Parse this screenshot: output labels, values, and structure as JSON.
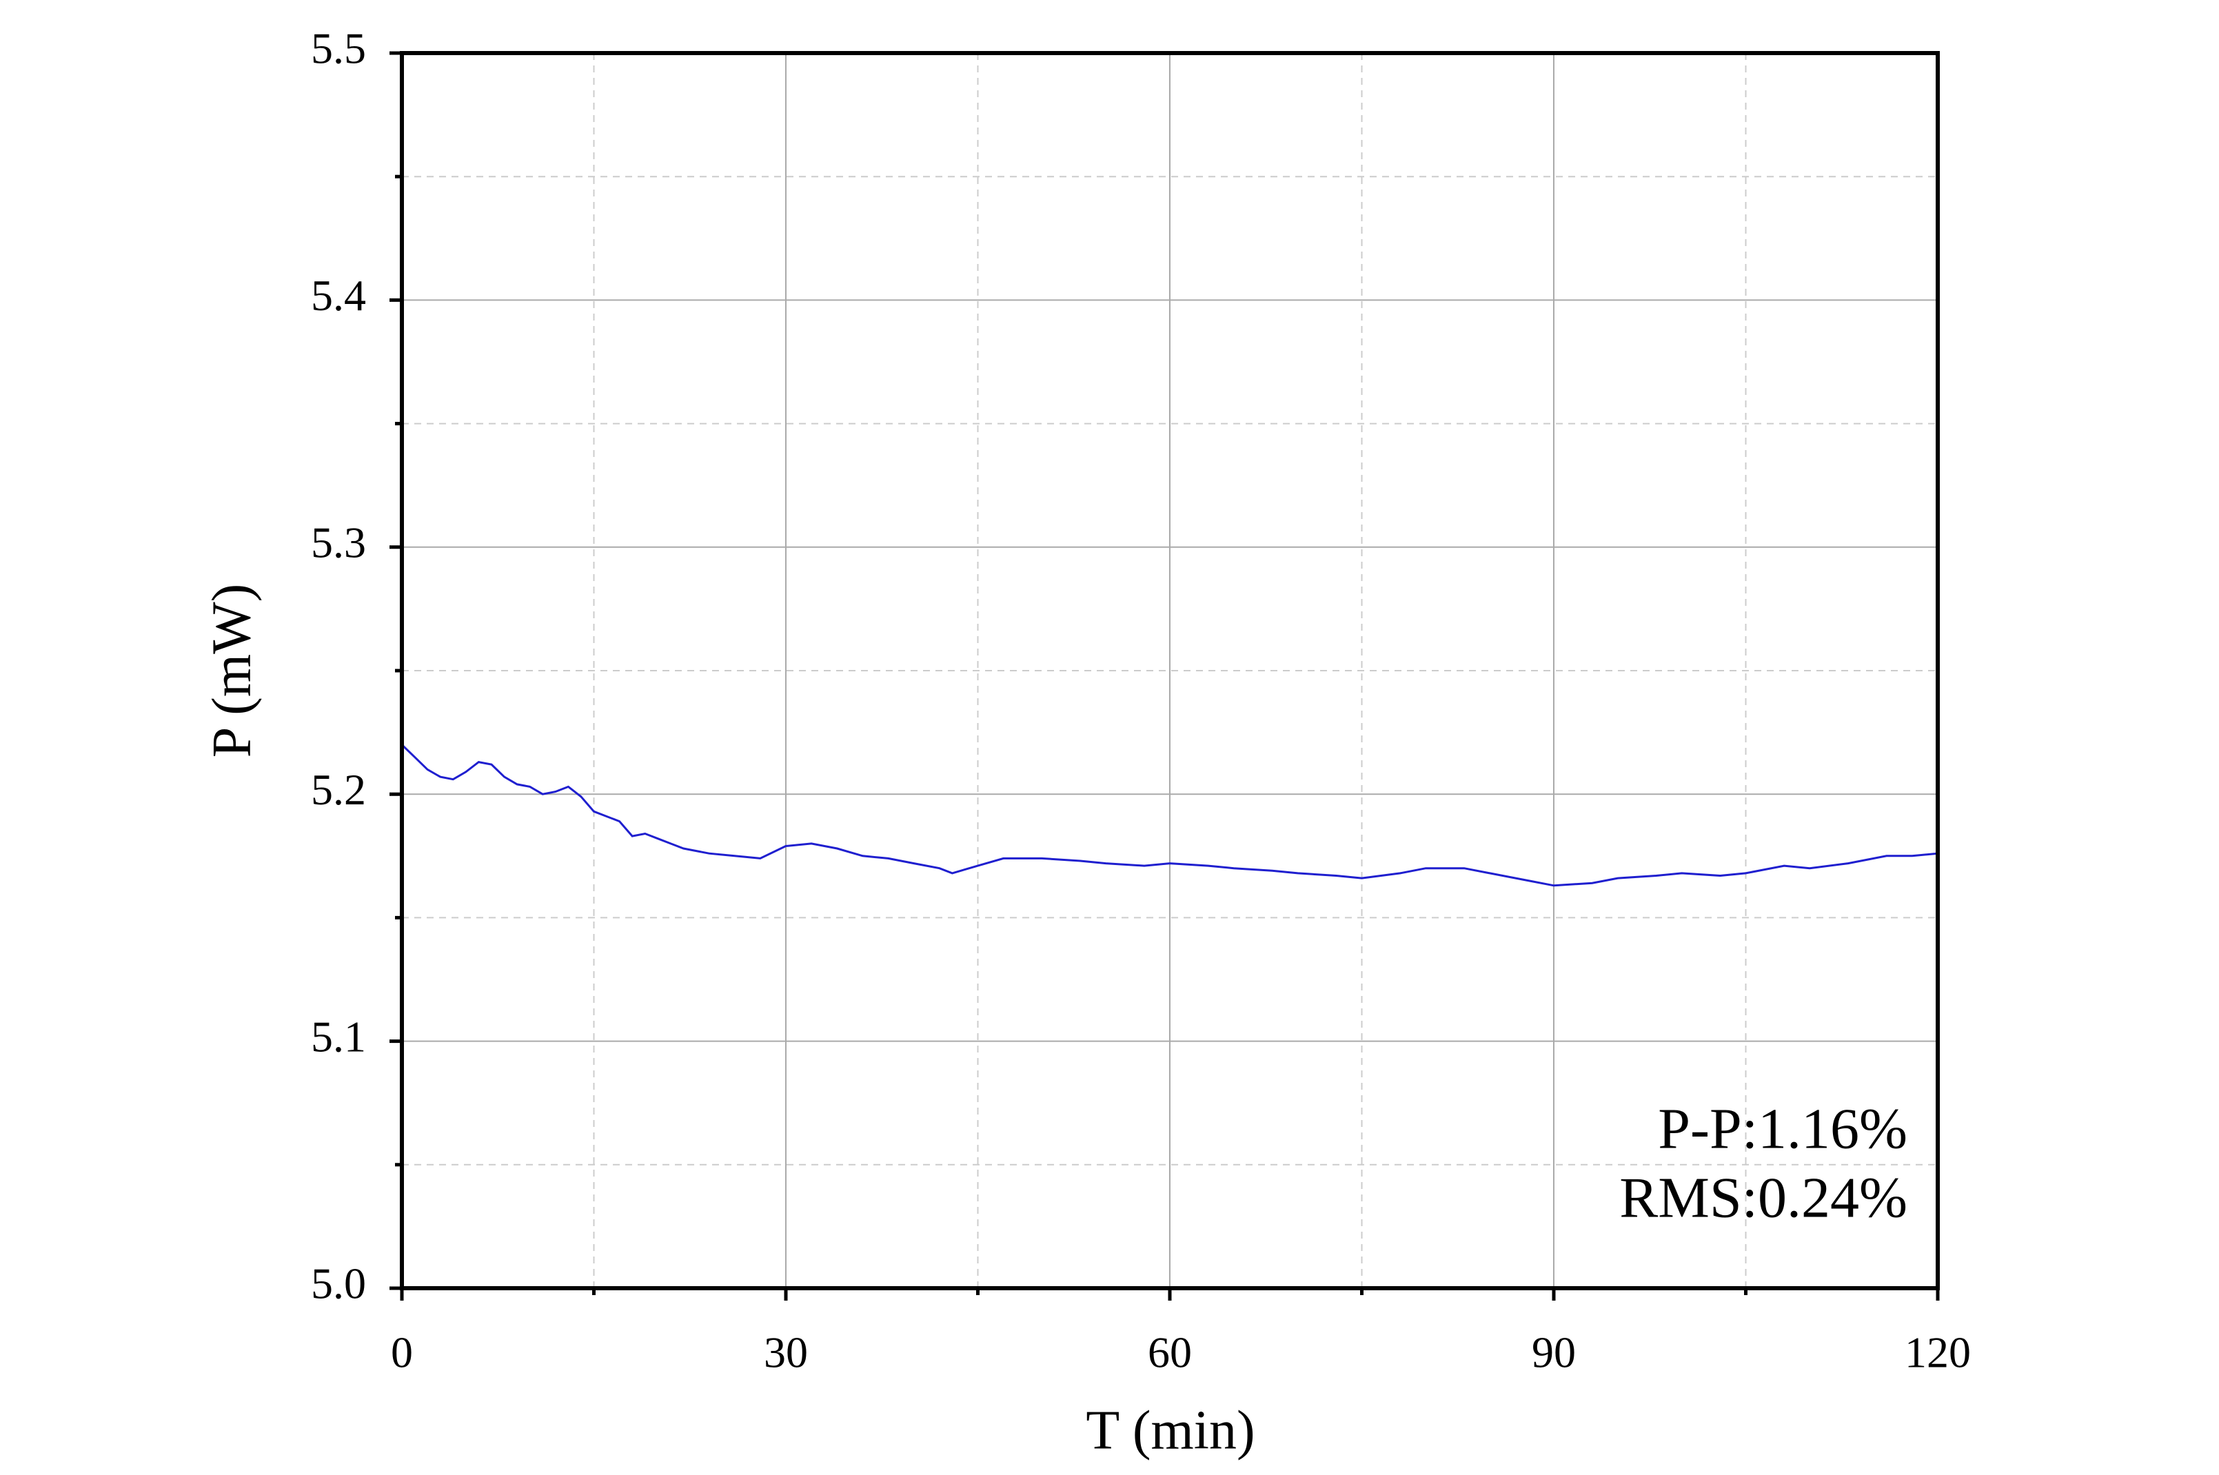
{
  "chart_data": {
    "type": "line",
    "x_label": "T (min)",
    "y_label": "P (mW)",
    "x": [
      0,
      1,
      2,
      3,
      4,
      5,
      6,
      7,
      8,
      9,
      10,
      11,
      12,
      13,
      14,
      15,
      16,
      17,
      18,
      19,
      20,
      21,
      22,
      24,
      26,
      28,
      30,
      32,
      34,
      36,
      38,
      40,
      42,
      43,
      45,
      47,
      50,
      53,
      55,
      58,
      60,
      63,
      65,
      68,
      70,
      73,
      75,
      78,
      80,
      83,
      85,
      88,
      90,
      93,
      95,
      98,
      100,
      103,
      105,
      108,
      110,
      113,
      116,
      118,
      120
    ],
    "series": [
      {
        "color": "#1f1fcf",
        "values": [
          5.22,
          5.215,
          5.21,
          5.207,
          5.206,
          5.209,
          5.213,
          5.212,
          5.207,
          5.204,
          5.203,
          5.2,
          5.201,
          5.203,
          5.199,
          5.193,
          5.191,
          5.189,
          5.183,
          5.184,
          5.182,
          5.18,
          5.178,
          5.176,
          5.175,
          5.174,
          5.179,
          5.18,
          5.178,
          5.175,
          5.174,
          5.172,
          5.17,
          5.168,
          5.171,
          5.174,
          5.174,
          5.173,
          5.172,
          5.171,
          5.172,
          5.171,
          5.17,
          5.169,
          5.168,
          5.167,
          5.166,
          5.168,
          5.17,
          5.17,
          5.168,
          5.165,
          5.163,
          5.164,
          5.166,
          5.167,
          5.168,
          5.167,
          5.168,
          5.171,
          5.17,
          5.172,
          5.175,
          5.175,
          5.176
        ]
      }
    ],
    "xlim": [
      0,
      120
    ],
    "xticks": [
      0,
      30,
      60,
      90,
      120
    ],
    "xminorticks": [
      15,
      45,
      75,
      105
    ],
    "ylim": [
      5.0,
      5.5
    ],
    "yticks": [
      {
        "value": 5.0,
        "label": "5.0"
      },
      5.1,
      5.2,
      5.3,
      5.4,
      5.5
    ],
    "yminorticks": [
      5.05,
      5.15,
      5.25,
      5.35,
      5.45
    ],
    "grid": true,
    "annotations": [
      "P-P:1.16%",
      "RMS:0.24%"
    ]
  }
}
